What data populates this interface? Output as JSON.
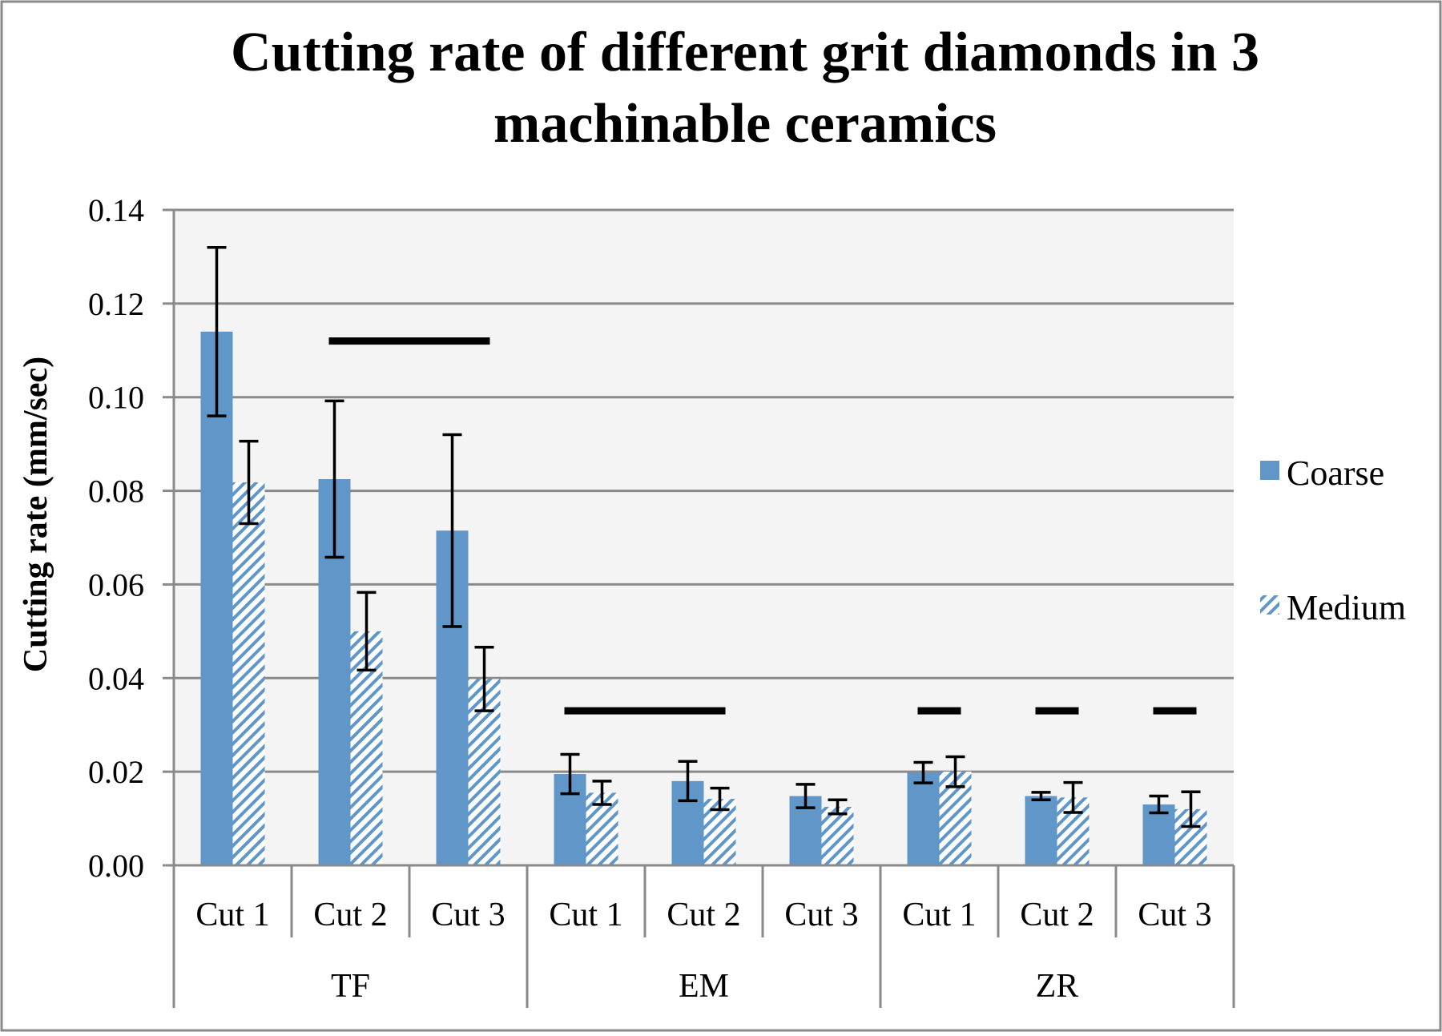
{
  "chart_data": {
    "type": "bar",
    "title": "Cutting rate of different grit diamonds in 3 machinable ceramics",
    "title_lines": [
      "Cutting rate of different grit diamonds in 3",
      "machinable ceramics"
    ],
    "ylabel": "Cutting rate (mm/sec)",
    "xlabel": "",
    "ylim": [
      0,
      0.14
    ],
    "yticks": [
      0,
      0.02,
      0.04,
      0.06,
      0.08,
      0.1,
      0.12,
      0.14
    ],
    "ytick_labels": [
      "0.00",
      "0.02",
      "0.04",
      "0.06",
      "0.08",
      "0.10",
      "0.12",
      "0.14"
    ],
    "grid": true,
    "legend_position": "right",
    "groups": [
      "TF",
      "EM",
      "ZR"
    ],
    "categories": [
      "Cut 1",
      "Cut 2",
      "Cut 3",
      "Cut 1",
      "Cut 2",
      "Cut 3",
      "Cut 1",
      "Cut 2",
      "Cut 3"
    ],
    "category_group": [
      0,
      0,
      0,
      1,
      1,
      1,
      2,
      2,
      2
    ],
    "series": [
      {
        "name": "Coarse",
        "color": "#6096c8",
        "pattern": "solid",
        "values": [
          0.114,
          0.0825,
          0.0715,
          0.0195,
          0.018,
          0.0148,
          0.0198,
          0.0148,
          0.013
        ],
        "errors": [
          0.018,
          0.0167,
          0.0205,
          0.0042,
          0.0042,
          0.0025,
          0.0022,
          0.0008,
          0.0018
        ]
      },
      {
        "name": "Medium",
        "color": "#6096c8",
        "pattern": "hatched",
        "values": [
          0.0818,
          0.05,
          0.0398,
          0.0155,
          0.0142,
          0.0125,
          0.02,
          0.0145,
          0.012
        ],
        "errors": [
          0.0088,
          0.0083,
          0.0068,
          0.0025,
          0.0023,
          0.0015,
          0.0032,
          0.0032,
          0.0037
        ]
      }
    ],
    "annotations": [
      {
        "type": "bracket",
        "from": 1,
        "to": 2,
        "y": 0.112
      },
      {
        "type": "bracket",
        "from": 3,
        "to": 4,
        "y": 0.033
      },
      {
        "type": "bracket",
        "from": 6,
        "to": 6,
        "y": 0.033
      },
      {
        "type": "bracket",
        "from": 7,
        "to": 7,
        "y": 0.033
      },
      {
        "type": "bracket",
        "from": 8,
        "to": 8,
        "y": 0.033
      }
    ]
  }
}
